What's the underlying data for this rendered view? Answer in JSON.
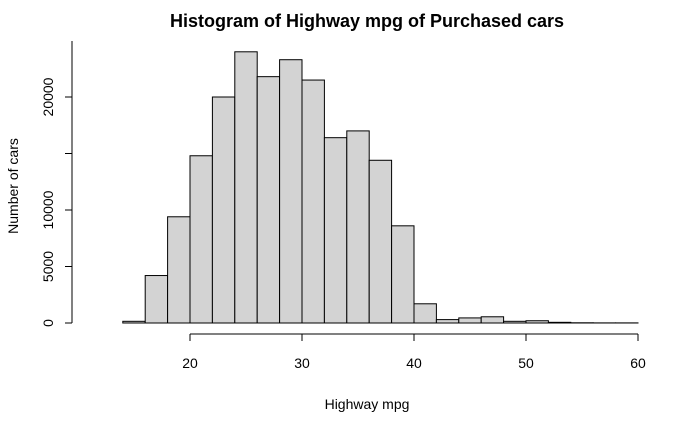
{
  "chart_data": {
    "type": "bar",
    "title": "Histogram of Highway mpg of Purchased cars",
    "xlabel": "Highway mpg",
    "ylabel": "Number of cars",
    "bin_edges": [
      14,
      16,
      18,
      20,
      22,
      24,
      26,
      28,
      30,
      32,
      34,
      36,
      38,
      40,
      42,
      44,
      46,
      48,
      50,
      52,
      54,
      56,
      58,
      60
    ],
    "values": [
      150,
      4200,
      9400,
      14800,
      20000,
      24000,
      21800,
      23300,
      21500,
      16400,
      17000,
      14400,
      8600,
      1700,
      300,
      450,
      550,
      150,
      200,
      60,
      20,
      10,
      10
    ],
    "xlim": [
      14,
      60
    ],
    "ylim": [
      0,
      24000
    ],
    "x_ticks": [
      20,
      30,
      40,
      50,
      60
    ],
    "y_ticks": [
      0,
      5000,
      10000,
      15000,
      20000
    ],
    "y_tick_labels": [
      "0",
      "5000",
      "10000",
      "",
      "20000"
    ],
    "bar_fill": "#d3d3d3",
    "bar_stroke": "#000000",
    "grid": false
  }
}
